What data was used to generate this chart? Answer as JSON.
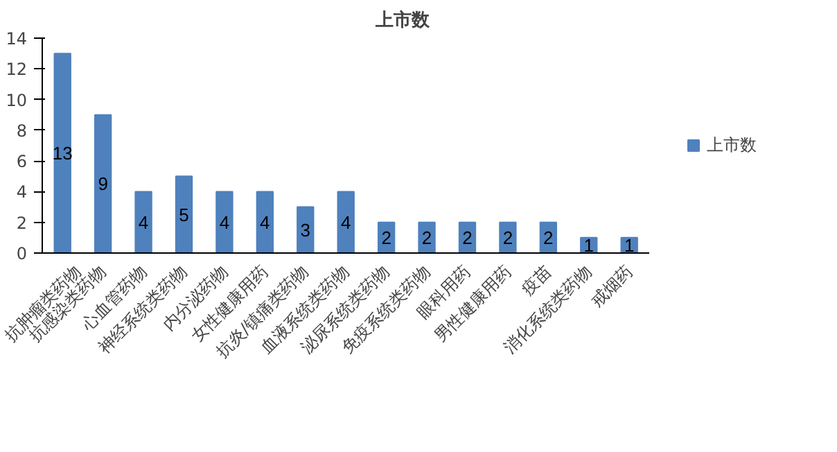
{
  "chart_data": {
    "type": "bar",
    "title": "上市数",
    "categories": [
      "抗肿瘤类药物",
      "抗感染类药物",
      "心血管药物",
      "神经系统类药物",
      "内分泌药物",
      "女性健康用药",
      "抗炎/镇痛类药物",
      "血液系统类药物",
      "泌尿系统类药物",
      "免疫系统类药物",
      "眼科用药",
      "男性健康用药",
      "疫苗",
      "消化系统类药物",
      "戒烟药"
    ],
    "series": [
      {
        "name": "上市数",
        "color": "#4f81bd",
        "values": [
          13,
          9,
          4,
          5,
          4,
          4,
          3,
          4,
          2,
          2,
          2,
          2,
          2,
          1,
          1
        ]
      }
    ],
    "ylim": [
      0,
      14
    ],
    "yticks": [
      0,
      2,
      4,
      6,
      8,
      10,
      12,
      14
    ],
    "grid": false,
    "legend": "right",
    "data_labels": true
  }
}
